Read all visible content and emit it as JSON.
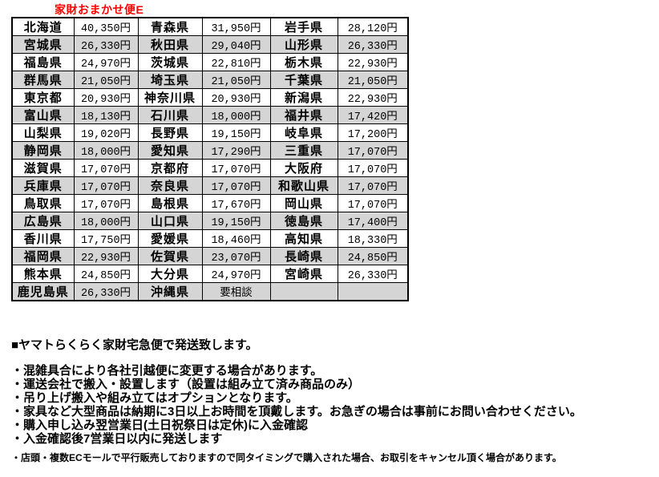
{
  "title": "家財おまかせ便E",
  "colors": {
    "title_red": "#ff0000",
    "row_alt_gray": "#d5d5d5",
    "border_black": "#000000",
    "background": "#ffffff"
  },
  "table": {
    "columns_per_row": [
      "prefecture",
      "price",
      "prefecture",
      "price",
      "prefecture",
      "price"
    ],
    "rows": [
      [
        "北海道",
        "40,350円",
        "青森県",
        "31,950円",
        "岩手県",
        "28,120円"
      ],
      [
        "宮城県",
        "26,330円",
        "秋田県",
        "29,040円",
        "山形県",
        "26,330円"
      ],
      [
        "福島県",
        "24,970円",
        "茨城県",
        "22,810円",
        "栃木県",
        "22,930円"
      ],
      [
        "群馬県",
        "21,050円",
        "埼玉県",
        "21,050円",
        "千葉県",
        "21,050円"
      ],
      [
        "東京都",
        "20,930円",
        "神奈川県",
        "20,930円",
        "新潟県",
        "22,930円"
      ],
      [
        "富山県",
        "18,130円",
        "石川県",
        "18,000円",
        "福井県",
        "17,420円"
      ],
      [
        "山梨県",
        "19,020円",
        "長野県",
        "19,150円",
        "岐阜県",
        "17,200円"
      ],
      [
        "静岡県",
        "18,000円",
        "愛知県",
        "17,290円",
        "三重県",
        "17,070円"
      ],
      [
        "滋賀県",
        "17,070円",
        "京都府",
        "17,070円",
        "大阪府",
        "17,070円"
      ],
      [
        "兵庫県",
        "17,070円",
        "奈良県",
        "17,070円",
        "和歌山県",
        "17,070円"
      ],
      [
        "鳥取県",
        "17,070円",
        "島根県",
        "17,670円",
        "岡山県",
        "17,070円"
      ],
      [
        "広島県",
        "18,000円",
        "山口県",
        "19,150円",
        "徳島県",
        "17,400円"
      ],
      [
        "香川県",
        "17,750円",
        "愛媛県",
        "18,460円",
        "高知県",
        "18,330円"
      ],
      [
        "福岡県",
        "22,930円",
        "佐賀県",
        "23,070円",
        "長崎県",
        "24,850円"
      ],
      [
        "熊本県",
        "24,850円",
        "大分県",
        "24,970円",
        "宮崎県",
        "26,330円"
      ],
      [
        "鹿児島県",
        "26,330円",
        "沖縄県",
        "要相談",
        "",
        ""
      ]
    ]
  },
  "notes": {
    "heading": "■ヤマトらくらく家財宅急便で発送致します。",
    "bullets": [
      "・混雑具合により各社引越便に変更する場合があります。",
      "・運送会社で搬入・設置します（設置は組み立て済み商品のみ）",
      "・吊り上げ搬入や組み立てはオプションとなります。",
      "・家具など大型商品は納期に3日以上お時間を頂戴します。お急ぎの場合は事前にお問い合わせください。",
      "・購入申し込み翌営業日(土日祝祭日は定休)に入金確認",
      "・入金確認後7営業日以内に発送します"
    ],
    "footnote": "・店頭・複数ECモールで平行販売しておりますので同タイミングで購入された場合、お取引をキャンセル頂く場合があります。"
  }
}
